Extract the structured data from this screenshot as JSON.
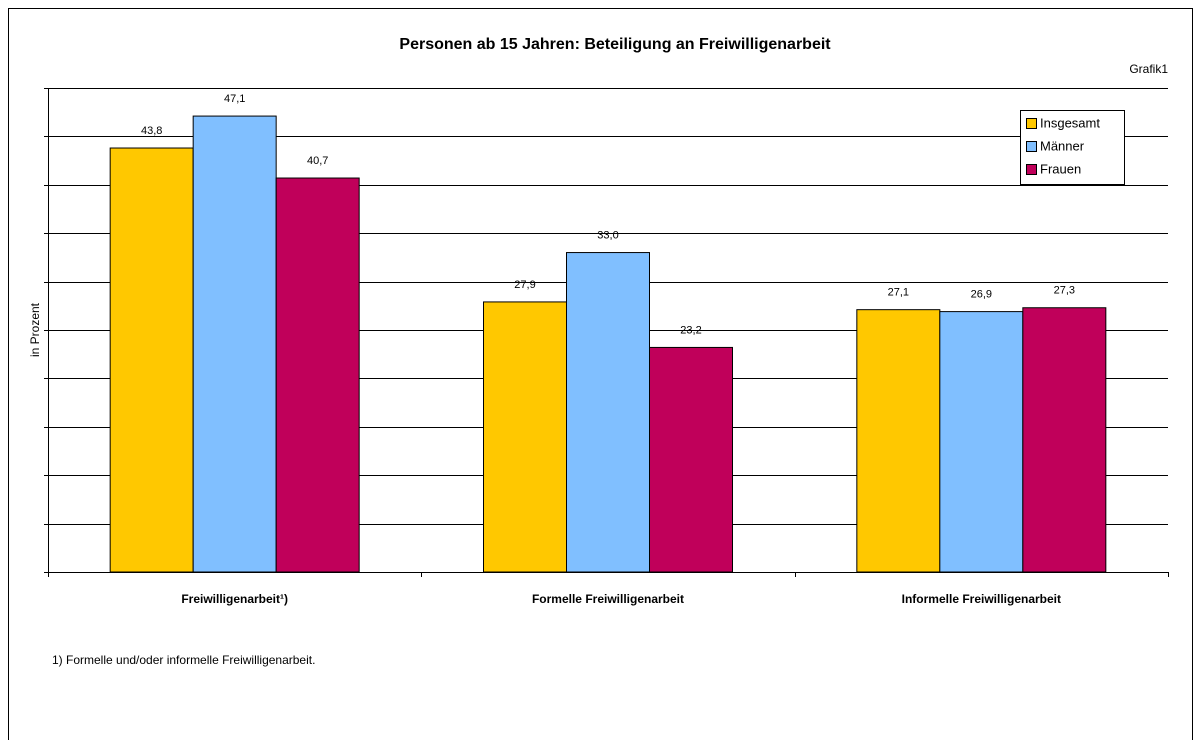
{
  "chart_data": {
    "type": "bar",
    "title": "Personen ab 15 Jahren: Beteiligung an Freiwilligenarbeit",
    "subtitle": "Grafik1",
    "y_label": "in Prozent",
    "footnote": "1) Formelle und/oder informelle Freiwilligenarbeit.",
    "categories": [
      "Freiwilligenarbeit¹)",
      "Formelle Freiwilligenarbeit",
      "Informelle Freiwilligenarbeit"
    ],
    "series": [
      {
        "name": "Insgesamt",
        "color": "#ffc800",
        "values": [
          43.8,
          27.9,
          27.1
        ],
        "value_labels": [
          "43,8",
          "27,9",
          "27,1"
        ]
      },
      {
        "name": "Männer",
        "color": "#80bfff",
        "values": [
          47.1,
          33.0,
          26.9
        ],
        "value_labels": [
          "47,1",
          "33,0",
          "26,9"
        ]
      },
      {
        "name": "Frauen",
        "color": "#c0005a",
        "values": [
          40.7,
          23.2,
          27.3
        ],
        "value_labels": [
          "40,7",
          "23,2",
          "27,3"
        ]
      }
    ],
    "ylim": [
      0,
      50
    ],
    "yticks": [
      0,
      5,
      10,
      15,
      20,
      25,
      30,
      35,
      40,
      45,
      50
    ],
    "grid": true,
    "legend": "upper right"
  }
}
